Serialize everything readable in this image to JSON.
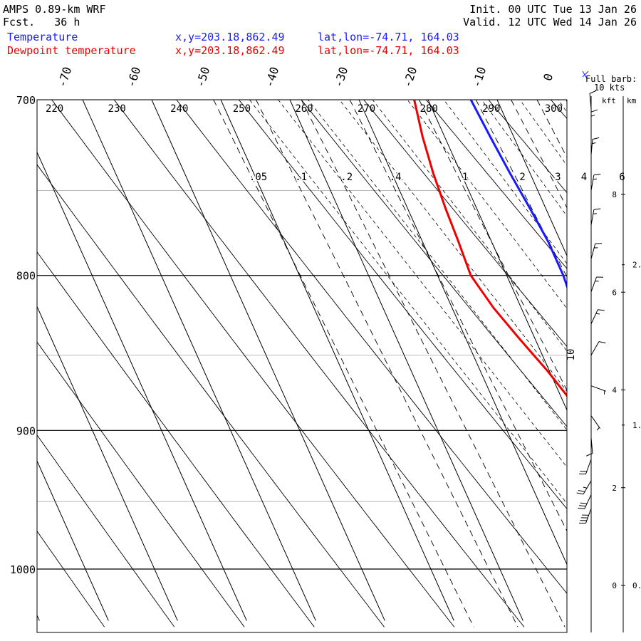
{
  "header": {
    "model": "AMPS 0.89-km WRF",
    "fcst_label": "Fcst.",
    "fcst_value": "36 h",
    "init_label": "Init.",
    "init_value": "00 UTC Tue 13 Jan 26",
    "valid_label": "Valid.",
    "valid_value": "12 UTC Wed 14 Jan 26"
  },
  "legend": {
    "temperature": {
      "label": "Temperature",
      "xy": "x,y=203.18,862.49",
      "latlon": "lat,lon=-74.71, 164.03",
      "color": "#1a1aff"
    },
    "dewpoint": {
      "label": "Dewpoint temperature",
      "xy": "x,y=203.18,862.49",
      "latlon": "lat,lon=-74.71, 164.03",
      "color": "#ee0000"
    }
  },
  "barb_legend": {
    "line1": "Full barb:",
    "line2": "10 kts"
  },
  "height_axis": {
    "kft_label": "kft",
    "km_label": "km"
  },
  "chart_data": {
    "type": "line",
    "title": "Skew-T log-P sounding",
    "ylabel": "Pressure (hPa)",
    "ylim": [
      700,
      1040
    ],
    "pressure_ticks": [
      700,
      800,
      900,
      1000
    ],
    "temperature_ticks": [
      -70,
      -60,
      -50,
      -40,
      -30,
      -20,
      -10,
      0
    ],
    "theta_labels": [
      220,
      230,
      240,
      250,
      260,
      270,
      280,
      290,
      300
    ],
    "mixing_ratio_labels": [
      ".05",
      ".1",
      ".2",
      ".4",
      "1",
      "2",
      "3",
      "4",
      "6"
    ],
    "mixing_ratio_values": [
      0.05,
      0.1,
      0.2,
      0.4,
      1,
      2,
      3,
      4,
      6
    ],
    "extra_label": "10",
    "kft_ticks": [
      0,
      2,
      4,
      6,
      8
    ],
    "km_ticks": [
      "0.",
      "1.",
      "2."
    ],
    "km_values": [
      0,
      1,
      2
    ],
    "series": [
      {
        "name": "Temperature",
        "color": "#1a1aff",
        "points": [
          [
            955,
            -14.5
          ],
          [
            945,
            -15
          ],
          [
            930,
            -15.5
          ],
          [
            915,
            -15.5
          ],
          [
            900,
            -14.8
          ],
          [
            880,
            -13.5
          ],
          [
            860,
            -13.0
          ],
          [
            840,
            -12.7
          ],
          [
            820,
            -12.3
          ],
          [
            800,
            -11.8
          ],
          [
            780,
            -11.8
          ],
          [
            760,
            -12.3
          ],
          [
            740,
            -12.9
          ],
          [
            720,
            -13.4
          ],
          [
            700,
            -13.8
          ]
        ]
      },
      {
        "name": "Dewpoint temperature",
        "color": "#ee0000",
        "points": [
          [
            955,
            -17.5
          ],
          [
            950,
            -15.8
          ],
          [
            945,
            -16.2
          ],
          [
            930,
            -15.8
          ],
          [
            915,
            -16.2
          ],
          [
            900,
            -17.8
          ],
          [
            880,
            -18.8
          ],
          [
            860,
            -20.3
          ],
          [
            840,
            -22.2
          ],
          [
            820,
            -24.0
          ],
          [
            800,
            -25.2
          ],
          [
            780,
            -24.8
          ],
          [
            760,
            -24.5
          ],
          [
            740,
            -24.0
          ],
          [
            720,
            -23.2
          ],
          [
            700,
            -22.0
          ]
        ]
      }
    ],
    "wind_barbs": [
      {
        "p": 955,
        "dir": 200,
        "kts": 40
      },
      {
        "p": 945,
        "dir": 205,
        "kts": 30
      },
      {
        "p": 935,
        "dir": 210,
        "kts": 25
      },
      {
        "p": 920,
        "dir": 200,
        "kts": 20
      },
      {
        "p": 905,
        "dir": 175,
        "kts": 10
      },
      {
        "p": 890,
        "dir": 145,
        "kts": 5
      },
      {
        "p": 870,
        "dir": 110,
        "kts": 5
      },
      {
        "p": 850,
        "dir": 30,
        "kts": 10
      },
      {
        "p": 830,
        "dir": 25,
        "kts": 15
      },
      {
        "p": 810,
        "dir": 20,
        "kts": 15
      },
      {
        "p": 790,
        "dir": 15,
        "kts": 15
      },
      {
        "p": 770,
        "dir": 10,
        "kts": 15
      },
      {
        "p": 750,
        "dir": 10,
        "kts": 15
      },
      {
        "p": 730,
        "dir": 5,
        "kts": 15
      },
      {
        "p": 715,
        "dir": 0,
        "kts": 15
      },
      {
        "p": 705,
        "dir": 355,
        "kts": 10
      }
    ]
  }
}
